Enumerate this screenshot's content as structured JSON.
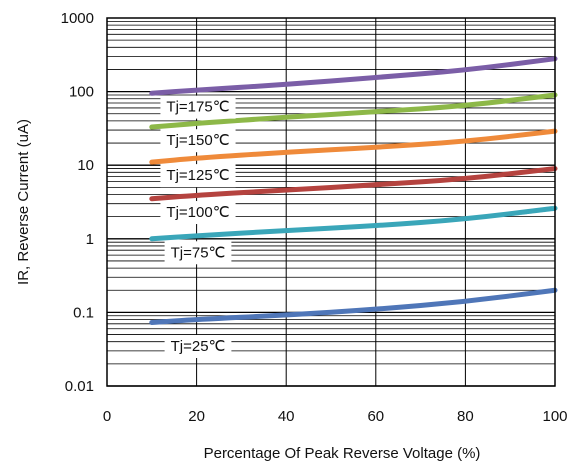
{
  "chart_data": {
    "type": "line",
    "title": "",
    "xlabel": "Percentage Of Peak Reverse Voltage (%)",
    "ylabel": "IR, Reverse Current (uA)",
    "xlim": [
      0,
      100
    ],
    "ylim": [
      0.01,
      1000
    ],
    "yscale": "log",
    "grid": true,
    "x_ticks": [
      "0",
      "20",
      "40",
      "60",
      "80",
      "100"
    ],
    "y_ticks": [
      "0.01",
      "0.1",
      "1",
      "10",
      "100",
      "1000"
    ],
    "series": [
      {
        "name": "Tj=175℃",
        "color": "#7b5ea7",
        "x": [
          10,
          20,
          40,
          60,
          80,
          100
        ],
        "y": [
          95,
          105,
          125,
          155,
          195,
          280
        ]
      },
      {
        "name": "Tj=150℃",
        "color": "#8db848",
        "x": [
          10,
          20,
          40,
          60,
          80,
          100
        ],
        "y": [
          33,
          37,
          45,
          53,
          64,
          90
        ]
      },
      {
        "name": "Tj=125℃",
        "color": "#ef8a3a",
        "x": [
          10,
          20,
          40,
          60,
          80,
          100
        ],
        "y": [
          11,
          12.5,
          15,
          17.5,
          21,
          29
        ]
      },
      {
        "name": "Tj=100℃",
        "color": "#b5433f",
        "x": [
          10,
          20,
          40,
          60,
          80,
          100
        ],
        "y": [
          3.5,
          3.9,
          4.6,
          5.4,
          6.5,
          9
        ]
      },
      {
        "name": "Tj=75℃",
        "color": "#3aa6b9",
        "x": [
          10,
          20,
          40,
          60,
          80,
          100
        ],
        "y": [
          1.0,
          1.1,
          1.3,
          1.5,
          1.85,
          2.6
        ]
      },
      {
        "name": "Tj=25℃",
        "color": "#4f76b8",
        "x": [
          10,
          20,
          40,
          60,
          80,
          100
        ],
        "y": [
          0.073,
          0.08,
          0.092,
          0.11,
          0.14,
          0.2
        ]
      }
    ]
  }
}
